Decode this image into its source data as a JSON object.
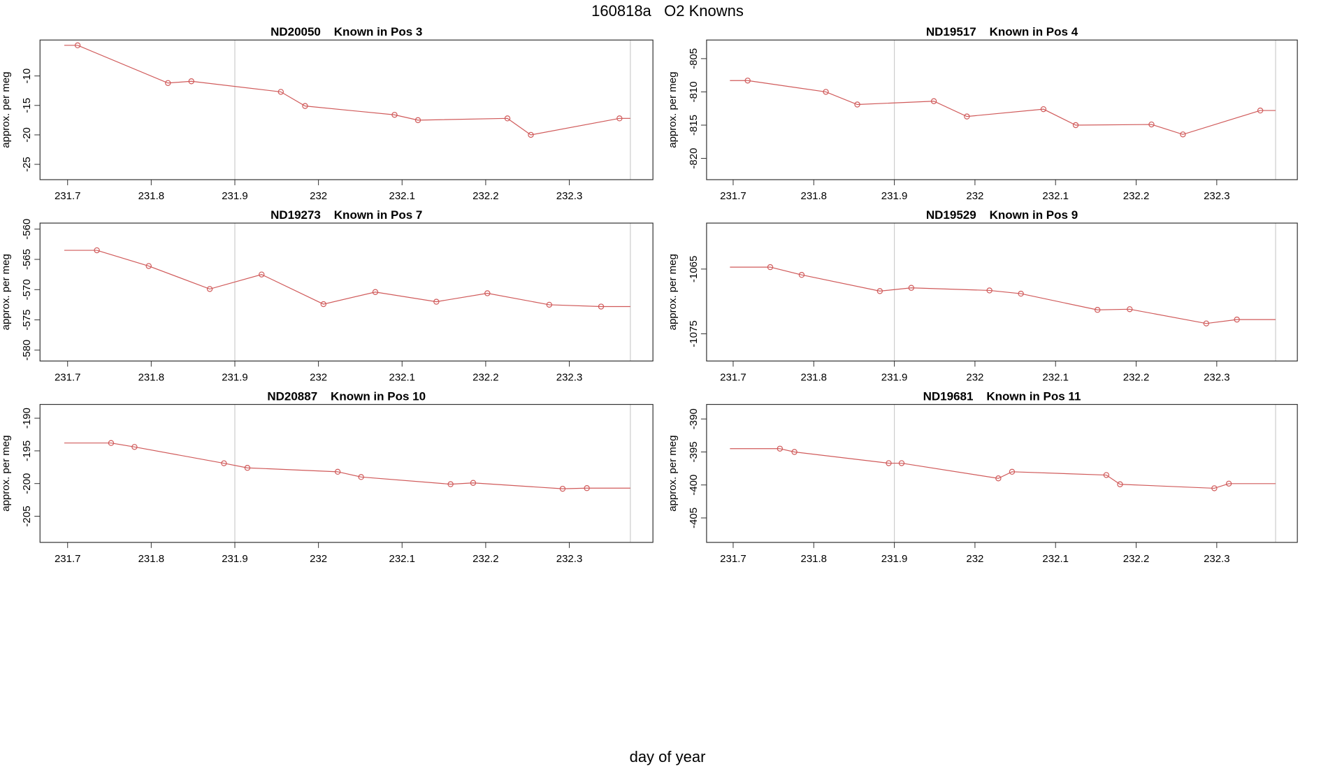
{
  "title": "160818a   O2 Knowns",
  "xlabel": "day of year",
  "chart_data": [
    {
      "type": "line",
      "title": "ND20050    Known in Pos 3",
      "ylabel": "approx. per meg",
      "color": "#d05a5a",
      "x": [
        231.712,
        231.82,
        231.848,
        231.955,
        231.984,
        232.091,
        232.119,
        232.226,
        232.254,
        232.36
      ],
      "values": [
        -4.8,
        -11.2,
        -10.9,
        -12.7,
        -15.1,
        -16.6,
        -17.5,
        -17.2,
        -20.0,
        -17.2
      ],
      "line_extent": [
        231.696,
        232.373
      ],
      "vlines": [
        231.9,
        232.373
      ],
      "vline_color": "#cccccc",
      "xlim": [
        231.667,
        232.4
      ],
      "xticks": [
        231.7,
        231.8,
        231.9,
        232.0,
        232.1,
        232.2,
        232.3
      ],
      "ylim": [
        -27.6,
        -3.9
      ],
      "yticks": [
        -10,
        -15,
        -20,
        -25
      ]
    },
    {
      "type": "line",
      "title": "ND19517    Known in Pos 4",
      "ylabel": "approx. per meg",
      "color": "#d05a5a",
      "x": [
        231.718,
        231.815,
        231.854,
        231.949,
        231.99,
        232.085,
        232.125,
        232.219,
        232.258,
        232.354
      ],
      "values": [
        -808.3,
        -810.0,
        -811.9,
        -811.4,
        -813.7,
        -812.6,
        -815.0,
        -814.9,
        -816.4,
        -812.8
      ],
      "line_extent": [
        231.696,
        232.373
      ],
      "vlines": [
        231.9,
        232.373
      ],
      "vline_color": "#cccccc",
      "xlim": [
        231.667,
        232.4
      ],
      "xticks": [
        231.7,
        231.8,
        231.9,
        232.0,
        232.1,
        232.2,
        232.3
      ],
      "ylim": [
        -823.2,
        -802.2
      ],
      "yticks": [
        -805,
        -810,
        -815,
        -820
      ]
    },
    {
      "type": "line",
      "title": "ND19273    Known in Pos 7",
      "ylabel": "approx. per meg",
      "color": "#d05a5a",
      "x": [
        231.735,
        231.797,
        231.87,
        231.932,
        232.006,
        232.068,
        232.141,
        232.202,
        232.276,
        232.338
      ],
      "values": [
        -563.5,
        -566.1,
        -569.9,
        -567.5,
        -572.4,
        -570.4,
        -572.0,
        -570.6,
        -572.5,
        -572.8
      ],
      "line_extent": [
        231.696,
        232.373
      ],
      "vlines": [
        231.9,
        232.373
      ],
      "vline_color": "#cccccc",
      "xlim": [
        231.667,
        232.4
      ],
      "xticks": [
        231.7,
        231.8,
        231.9,
        232.0,
        232.1,
        232.2,
        232.3
      ],
      "ylim": [
        -581.8,
        -559.0
      ],
      "yticks": [
        -560,
        -565,
        -570,
        -575,
        -580
      ]
    },
    {
      "type": "line",
      "title": "ND19529    Known in Pos 9",
      "ylabel": "approx. per meg",
      "color": "#d05a5a",
      "x": [
        231.746,
        231.785,
        231.882,
        231.921,
        232.018,
        232.057,
        232.152,
        232.192,
        232.287,
        232.325
      ],
      "values": [
        -1064.7,
        -1065.9,
        -1068.4,
        -1067.9,
        -1068.3,
        -1068.8,
        -1071.3,
        -1071.2,
        -1073.4,
        -1072.8
      ],
      "line_extent": [
        231.696,
        232.373
      ],
      "vlines": [
        231.9,
        232.373
      ],
      "vline_color": "#cccccc",
      "xlim": [
        231.667,
        232.4
      ],
      "xticks": [
        231.7,
        231.8,
        231.9,
        232.0,
        232.1,
        232.2,
        232.3
      ],
      "ylim": [
        -1079.2,
        -1057.9
      ],
      "yticks": [
        -1065,
        -1075
      ]
    },
    {
      "type": "line",
      "title": "ND20887    Known in Pos 10",
      "ylabel": "approx. per meg",
      "color": "#d05a5a",
      "x": [
        231.752,
        231.78,
        231.887,
        231.915,
        232.023,
        232.051,
        232.158,
        232.185,
        232.292,
        232.321
      ],
      "values": [
        -193.8,
        -194.4,
        -196.9,
        -197.6,
        -198.2,
        -199.0,
        -200.1,
        -199.9,
        -200.8,
        -200.7
      ],
      "line_extent": [
        231.696,
        232.373
      ],
      "vlines": [
        231.9,
        232.373
      ],
      "vline_color": "#cccccc",
      "xlim": [
        231.667,
        232.4
      ],
      "xticks": [
        231.7,
        231.8,
        231.9,
        232.0,
        232.1,
        232.2,
        232.3
      ],
      "ylim": [
        -209.0,
        -187.9
      ],
      "yticks": [
        -190,
        -195,
        -200,
        -205
      ]
    },
    {
      "type": "line",
      "title": "ND19681    Known in Pos 11",
      "ylabel": "approx. per meg",
      "color": "#d05a5a",
      "x": [
        231.758,
        231.776,
        231.893,
        231.909,
        232.029,
        232.046,
        232.163,
        232.18,
        232.297,
        232.315
      ],
      "values": [
        -394.5,
        -395.0,
        -396.7,
        -396.7,
        -399.0,
        -398.0,
        -398.5,
        -399.9,
        -400.5,
        -399.8
      ],
      "line_extent": [
        231.696,
        232.373
      ],
      "vlines": [
        231.9,
        232.373
      ],
      "vline_color": "#cccccc",
      "xlim": [
        231.667,
        232.4
      ],
      "xticks": [
        231.7,
        231.8,
        231.9,
        232.0,
        232.1,
        232.2,
        232.3
      ],
      "ylim": [
        -408.7,
        -387.8
      ],
      "yticks": [
        -390,
        -395,
        -400,
        -405
      ]
    }
  ]
}
